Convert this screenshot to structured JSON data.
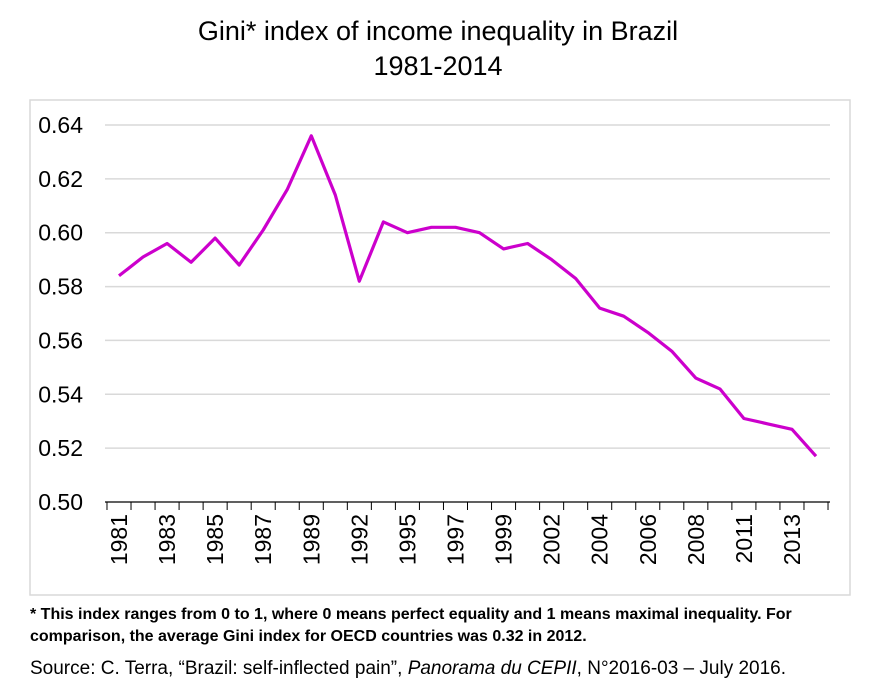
{
  "chart_data": {
    "type": "line",
    "title": "Gini* index of income inequality in Brazil",
    "subtitle": "1981-2014",
    "xlabel": "",
    "ylabel": "",
    "ylim": [
      0.5,
      0.64
    ],
    "yticks": [
      "0.50",
      "0.52",
      "0.54",
      "0.56",
      "0.58",
      "0.60",
      "0.62",
      "0.64"
    ],
    "grid": true,
    "legend": "none",
    "x": [
      1981,
      1982,
      1983,
      1984,
      1985,
      1986,
      1987,
      1988,
      1989,
      1990,
      1992,
      1993,
      1995,
      1996,
      1997,
      1998,
      1999,
      2001,
      2002,
      2003,
      2004,
      2005,
      2006,
      2007,
      2008,
      2009,
      2011,
      2012,
      2013,
      2014
    ],
    "xticks": [
      "1981",
      "1983",
      "1985",
      "1987",
      "1989",
      "1992",
      "1995",
      "1997",
      "1999",
      "2002",
      "2004",
      "2006",
      "2008",
      "2011",
      "2013"
    ],
    "series": [
      {
        "values": [
          0.584,
          0.591,
          0.596,
          0.589,
          0.598,
          0.588,
          0.601,
          0.616,
          0.636,
          0.614,
          0.582,
          0.604,
          0.6,
          0.602,
          0.602,
          0.6,
          0.594,
          0.596,
          0.59,
          0.583,
          0.572,
          0.569,
          0.563,
          0.556,
          0.546,
          0.542,
          0.531,
          0.529,
          0.527,
          0.517
        ],
        "color": "#cc00cc"
      }
    ]
  },
  "footnote": "* This index ranges from 0 to 1, where 0 means perfect equality and 1 means maximal inequality. For comparison, the average Gini index for OECD countries was 0.32 in 2012.",
  "source": {
    "prefix": "Source: C. Terra, “Brazil: self-inflected pain”, ",
    "publication": "Panorama du CEPII",
    "suffix": ", N°2016-03 – July 2016."
  },
  "colors": {
    "line": "#cc00cc",
    "grid": "#d9d9d9",
    "axis": "#000000",
    "frame": "#d9d9d9"
  }
}
